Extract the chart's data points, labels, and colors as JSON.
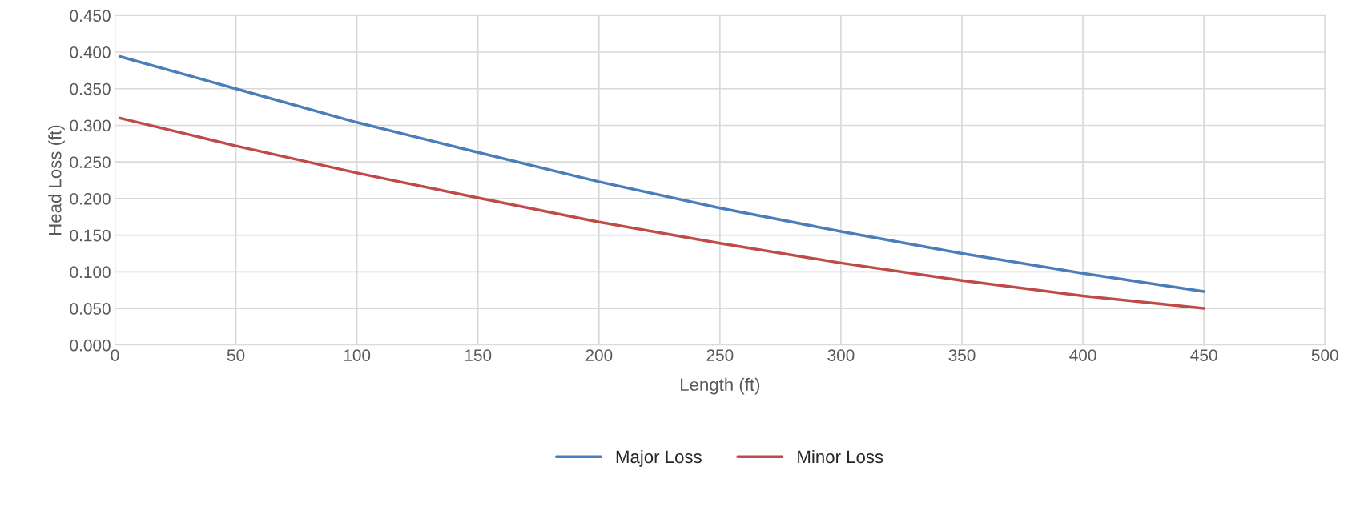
{
  "chart_data": {
    "type": "line",
    "xlabel": "Length (ft)",
    "ylabel": "Head Loss (ft)",
    "x": [
      2,
      50,
      100,
      150,
      200,
      250,
      300,
      350,
      400,
      450
    ],
    "series": [
      {
        "name": "Major Loss",
        "color": "#4a7ebb",
        "values": [
          0.394,
          0.35,
          0.304,
          0.263,
          0.223,
          0.187,
          0.155,
          0.125,
          0.098,
          0.073
        ]
      },
      {
        "name": "Minor Loss",
        "color": "#be4b48",
        "values": [
          0.31,
          0.272,
          0.235,
          0.201,
          0.168,
          0.139,
          0.112,
          0.088,
          0.067,
          0.05
        ]
      }
    ],
    "xlim": [
      0,
      500
    ],
    "xticks": [
      0,
      50,
      100,
      150,
      200,
      250,
      300,
      350,
      400,
      450,
      500
    ],
    "ylim": [
      0,
      0.45
    ],
    "yticks": [
      {
        "value": 0,
        "label": "0.000"
      },
      {
        "value": 0.05,
        "label": "0.050"
      },
      {
        "value": 0.1,
        "label": "0.100"
      },
      {
        "value": 0.15,
        "label": "0.150"
      },
      {
        "value": 0.2,
        "label": "0.200"
      },
      {
        "value": 0.25,
        "label": "0.250"
      },
      {
        "value": 0.3,
        "label": "0.300"
      },
      {
        "value": 0.35,
        "label": "0.350"
      },
      {
        "value": 0.4,
        "label": "0.400"
      },
      {
        "value": 0.45,
        "label": "0.450"
      }
    ],
    "grid": true,
    "legend": "bottom",
    "marker": "none",
    "line_style": "solid"
  }
}
